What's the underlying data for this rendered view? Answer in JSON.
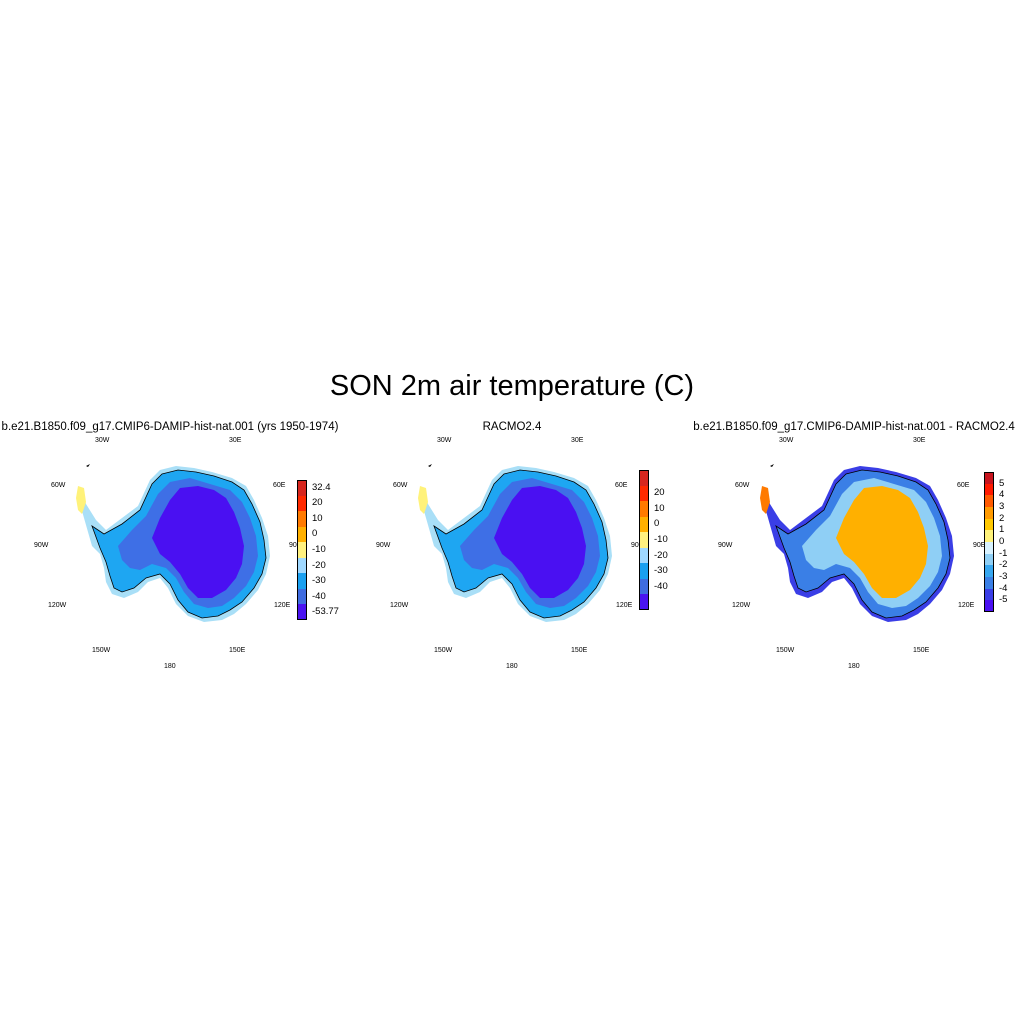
{
  "figure": {
    "title": "SON 2m air temperature (C)"
  },
  "panels": [
    {
      "title": "b.e21.B1850.f09_g17.CMIP6-DAMIP-hist-nat.001 (yrs 1950-1974)",
      "lon_labels": [
        "30W",
        "30E",
        "60W",
        "60E",
        "90W",
        "90E",
        "120W",
        "120E",
        "150W",
        "150E",
        "180"
      ],
      "colorbar": {
        "labels": [
          "32.4",
          "20",
          "10",
          "0",
          "-10",
          "-20",
          "-30",
          "-40",
          "-53.77"
        ],
        "colors": [
          "#d7261e",
          "#ff2a00",
          "#ff7a00",
          "#ffb000",
          "#fff17f",
          "#9fd8ff",
          "#1aa0f0",
          "#3f6ce0",
          "#4a14f0"
        ]
      },
      "palette": {
        "coast": "#a9dff7",
        "outer": "#1ea6f2",
        "mid": "#3e6fe6",
        "inner": "#4a10f2",
        "yellow": "#fff27a"
      }
    },
    {
      "title": "RACMO2.4",
      "lon_labels": [
        "30W",
        "30E",
        "60W",
        "60E",
        "90W",
        "90E",
        "120W",
        "120E",
        "150W",
        "150E",
        "180"
      ],
      "colorbar": {
        "labels": [
          "20",
          "10",
          "0",
          "-10",
          "-20",
          "-30",
          "-40"
        ],
        "colors": [
          "#d7261e",
          "#ff2a00",
          "#ff7a00",
          "#ffb000",
          "#fff17f",
          "#9fd8ff",
          "#1aa0f0",
          "#3f6ce0",
          "#4a14f0"
        ]
      },
      "palette": {
        "coast": "#a9dff7",
        "outer": "#1ea6f2",
        "mid": "#3e6fe6",
        "inner": "#4a10f2",
        "yellow": "#fff27a"
      }
    },
    {
      "title": "b.e21.B1850.f09_g17.CMIP6-DAMIP-hist-nat.001 - RACMO2.4",
      "lon_labels": [
        "30W",
        "30E",
        "60W",
        "60E",
        "90W",
        "90E",
        "120W",
        "120E",
        "150W",
        "150E",
        "180"
      ],
      "colorbar": {
        "labels": [
          "5",
          "4",
          "3",
          "2",
          "1",
          "0",
          "-1",
          "-2",
          "-3",
          "-4",
          "-5"
        ],
        "colors": [
          "#c8141e",
          "#ff1a00",
          "#ff5a00",
          "#ff9a00",
          "#ffc800",
          "#fff27a",
          "#d8f2ff",
          "#8fcff5",
          "#37a7f0",
          "#3a7fe6",
          "#3a3ee6",
          "#4a10f2"
        ]
      },
      "palette": {
        "coast": "#3a3ee6",
        "outer": "#3a7fe6",
        "mid": "#8fcff5",
        "inner": "#ffb000",
        "yellow": "#ff7a00"
      }
    }
  ]
}
